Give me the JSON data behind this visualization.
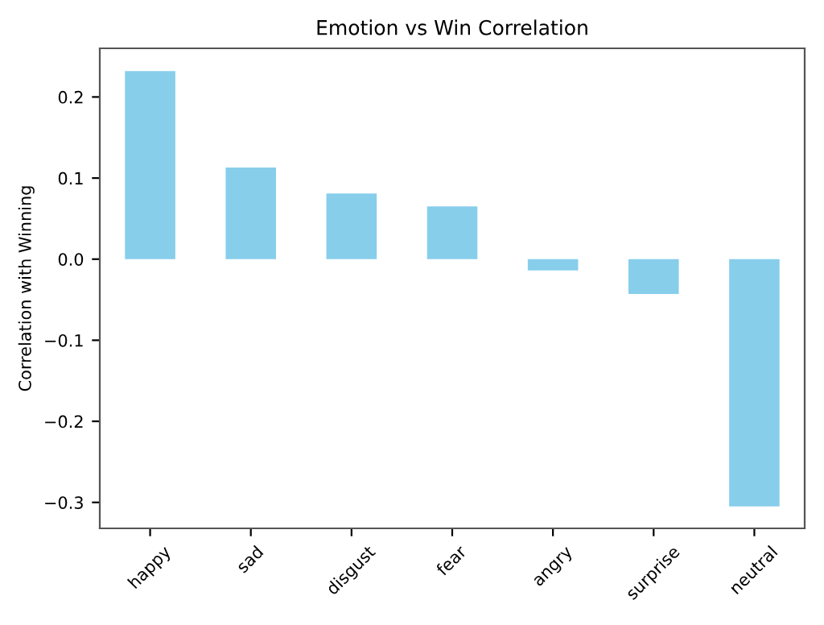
{
  "chart_data": {
    "type": "bar",
    "title": "Emotion vs Win Correlation",
    "ylabel": "Correlation with Winning",
    "categories": [
      "happy",
      "sad",
      "disgust",
      "fear",
      "angry",
      "surprise",
      "neutral"
    ],
    "values": [
      0.232,
      0.113,
      0.081,
      0.065,
      -0.014,
      -0.043,
      -0.305
    ],
    "color": "#87ceeb",
    "ylim": [
      -0.332,
      0.26
    ],
    "yticks": [
      {
        "value": -0.3,
        "label": "−0.3"
      },
      {
        "value": -0.2,
        "label": "−0.2"
      },
      {
        "value": -0.1,
        "label": "−0.1"
      },
      {
        "value": 0,
        "label": "0.0"
      },
      0.1,
      0.2
    ],
    "grid": false,
    "legend": false
  }
}
